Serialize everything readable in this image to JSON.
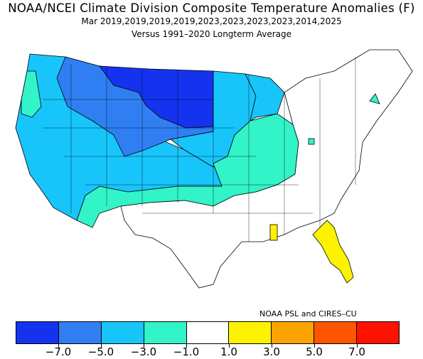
{
  "title": "NOAA/NCEI Climate Division Composite Temperature Anomalies (F)",
  "subtitle": "Mar  2019,2019,2019,2019,2023,2023,2023,2023,2014,2025",
  "baseline": "Versus 1991–2020 Longterm Average",
  "credit": "NOAA PSL and CIRES–CU",
  "legend": {
    "colors": [
      "#1533ef",
      "#2f7ff2",
      "#18c5fb",
      "#33f3c8",
      "#ffffff",
      "#fdf300",
      "#fda400",
      "#ff5500",
      "#ff1100"
    ],
    "labels": [
      "−7.0",
      "−5.0",
      "−3.0",
      "−1.0",
      "1.0",
      "3.0",
      "5.0",
      "7.0"
    ]
  },
  "regions": [
    {
      "name": "northern-plains",
      "anomaly_class": "below -7.0",
      "color": "#1533ef"
    },
    {
      "name": "northwest-and-rockies",
      "anomaly_class": "-7.0 to -5.0",
      "color": "#2f7ff2"
    },
    {
      "name": "west-and-central-plains",
      "anomaly_class": "-5.0 to -3.0",
      "color": "#18c5fb"
    },
    {
      "name": "southwest-and-midwest",
      "anomaly_class": "-3.0 to -1.0",
      "color": "#33f3c8"
    },
    {
      "name": "east-and-south",
      "anomaly_class": "-1.0 to 1.0",
      "color": "#ffffff"
    },
    {
      "name": "florida-and-south-georgia",
      "anomaly_class": "1.0 to 3.0",
      "color": "#fdf300"
    }
  ]
}
